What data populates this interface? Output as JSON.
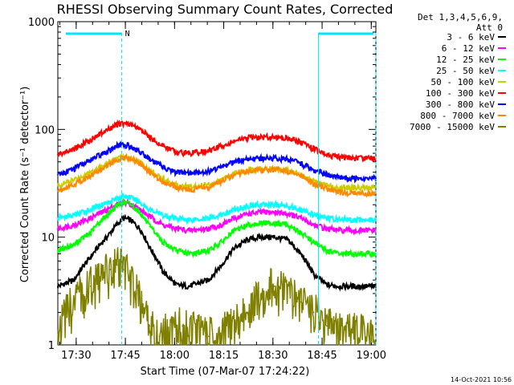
{
  "chart_data": {
    "type": "line",
    "title": "RHESSI Observing Summary Count Rates, Corrected",
    "xlabel": "Start Time (07-Mar-07 17:24:22)",
    "ylabel": "Corrected Count Rate (s⁻¹ detector⁻¹)",
    "x_unit": "minutes since 17:24:22",
    "xlim": [
      0,
      97
    ],
    "ylim": [
      1,
      1000
    ],
    "y_scale": "log",
    "x_ticks": [
      {
        "x": 5.6,
        "label": "17:30"
      },
      {
        "x": 20.6,
        "label": "17:45"
      },
      {
        "x": 35.6,
        "label": "18:00"
      },
      {
        "x": 50.6,
        "label": "18:15"
      },
      {
        "x": 65.6,
        "label": "18:30"
      },
      {
        "x": 80.6,
        "label": "18:45"
      },
      {
        "x": 95.6,
        "label": "19:00"
      }
    ],
    "y_ticks": [
      {
        "y": 1,
        "label": "1"
      },
      {
        "y": 10,
        "label": "10"
      },
      {
        "y": 100,
        "label": "100"
      },
      {
        "y": 1000,
        "label": "1000"
      }
    ],
    "legend_header": [
      "Det 1,3,4,5,6,9,",
      "Att 0"
    ],
    "legend_placement": "right",
    "series": [
      {
        "name": "3 - 6 keV",
        "color": "#000000",
        "x": [
          0,
          5,
          10,
          15,
          18,
          20,
          22,
          25,
          28,
          32,
          36,
          40,
          46,
          50,
          54,
          58,
          62,
          66,
          70,
          74,
          78,
          82,
          86,
          90,
          97
        ],
        "y": [
          3.5,
          4.0,
          6.5,
          10,
          13,
          15,
          14.5,
          12,
          8,
          4.8,
          3.6,
          3.5,
          4.0,
          5.5,
          8,
          9.5,
          10,
          10,
          9.5,
          7,
          4.5,
          3.6,
          3.5,
          3.5,
          3.5
        ]
      },
      {
        "name": "6 - 12 keV",
        "color": "#ff00ff",
        "x": [
          0,
          5,
          10,
          15,
          18,
          20,
          22,
          25,
          28,
          32,
          36,
          40,
          46,
          50,
          54,
          58,
          62,
          66,
          70,
          74,
          78,
          82,
          86,
          90,
          97
        ],
        "y": [
          12,
          13,
          15,
          18,
          20,
          21,
          20.5,
          18,
          15.5,
          13,
          12,
          11.5,
          12,
          13,
          15,
          16.5,
          17,
          17,
          16.5,
          15,
          13,
          12,
          11.5,
          11.5,
          11.5
        ]
      },
      {
        "name": "12 - 25 keV",
        "color": "#00ff00",
        "x": [
          0,
          5,
          10,
          15,
          18,
          20,
          22,
          25,
          28,
          32,
          36,
          40,
          46,
          50,
          54,
          58,
          62,
          66,
          70,
          74,
          78,
          82,
          86,
          90,
          97
        ],
        "y": [
          7.5,
          8.5,
          11,
          16,
          19.5,
          21,
          20.5,
          17,
          12.5,
          9,
          7.5,
          7,
          7.5,
          9,
          11.5,
          13,
          13.5,
          13.5,
          13,
          11,
          9,
          7.5,
          7,
          7,
          7
        ]
      },
      {
        "name": "25 - 50 keV",
        "color": "#00ffff",
        "x": [
          0,
          5,
          10,
          15,
          18,
          20,
          22,
          25,
          28,
          32,
          36,
          40,
          46,
          50,
          54,
          58,
          62,
          66,
          70,
          74,
          78,
          82,
          86,
          90,
          97
        ],
        "y": [
          15,
          16,
          18,
          21,
          23,
          24,
          23.5,
          21,
          18,
          16,
          15,
          14.5,
          15,
          16,
          18,
          19.5,
          20,
          20,
          19.5,
          18,
          16,
          15,
          14.5,
          14.5,
          14.5
        ]
      },
      {
        "name": "50 - 100 keV",
        "color": "#cccc00",
        "x": [
          0,
          5,
          10,
          15,
          18,
          20,
          22,
          25,
          28,
          32,
          36,
          40,
          46,
          50,
          54,
          58,
          62,
          66,
          70,
          74,
          78,
          82,
          86,
          90,
          97
        ],
        "y": [
          30,
          34,
          40,
          48,
          54,
          56,
          55,
          49,
          42,
          35,
          31,
          29.5,
          31,
          34,
          39,
          42,
          43,
          43,
          42,
          38,
          33,
          30,
          29,
          29,
          29
        ]
      },
      {
        "name": "100 - 300 keV",
        "color": "#ff0000",
        "x": [
          0,
          5,
          10,
          15,
          18,
          20,
          22,
          25,
          28,
          32,
          36,
          40,
          46,
          50,
          54,
          58,
          62,
          66,
          70,
          74,
          78,
          82,
          86,
          90,
          97
        ],
        "y": [
          58,
          66,
          80,
          98,
          110,
          114,
          112,
          100,
          85,
          70,
          62,
          60,
          63,
          70,
          78,
          83,
          85,
          85,
          83,
          76,
          66,
          58,
          55,
          54,
          54
        ]
      },
      {
        "name": "300 - 800 keV",
        "color": "#0000ff",
        "x": [
          0,
          5,
          10,
          15,
          18,
          20,
          22,
          25,
          28,
          32,
          36,
          40,
          46,
          50,
          54,
          58,
          62,
          66,
          70,
          74,
          78,
          82,
          86,
          90,
          97
        ],
        "y": [
          38,
          43,
          52,
          62,
          70,
          72,
          70,
          62,
          53,
          45,
          40,
          39,
          41,
          45,
          50,
          53,
          54,
          54,
          53,
          48,
          42,
          38,
          36,
          35,
          35
        ]
      },
      {
        "name": "800 - 7000 keV",
        "color": "#ff8800",
        "x": [
          0,
          5,
          10,
          15,
          18,
          20,
          22,
          25,
          28,
          32,
          36,
          40,
          46,
          50,
          54,
          58,
          62,
          66,
          70,
          74,
          78,
          82,
          86,
          90,
          97
        ],
        "y": [
          27,
          31,
          37,
          46,
          52,
          55,
          54,
          48,
          40,
          33,
          29,
          27.5,
          29,
          33,
          38,
          41,
          42,
          42,
          41,
          37,
          31,
          28,
          26,
          25.5,
          25.5
        ]
      },
      {
        "name": "7000 - 15000 keV",
        "color": "#808000",
        "x": [
          0,
          5,
          10,
          13,
          16,
          18,
          20,
          22,
          24,
          26,
          28,
          31,
          34,
          38,
          42,
          46,
          50,
          54,
          58,
          62,
          66,
          70,
          74,
          78,
          82,
          86,
          90,
          97
        ],
        "y": [
          1.3,
          2.5,
          3.5,
          4.0,
          5.0,
          5.5,
          5.0,
          4.0,
          3.0,
          2.0,
          1.5,
          1.2,
          1.3,
          1.5,
          1.3,
          1.2,
          1.3,
          1.5,
          2.0,
          3.0,
          3.5,
          3.0,
          2.5,
          2.0,
          1.5,
          1.3,
          1.3,
          1.2
        ]
      }
    ],
    "attenuator_markers": {
      "label": "N",
      "vertical_lines_x": [
        19.5,
        79.5,
        97
      ]
    }
  },
  "timestamp": "14-Oct-2021 10:56"
}
